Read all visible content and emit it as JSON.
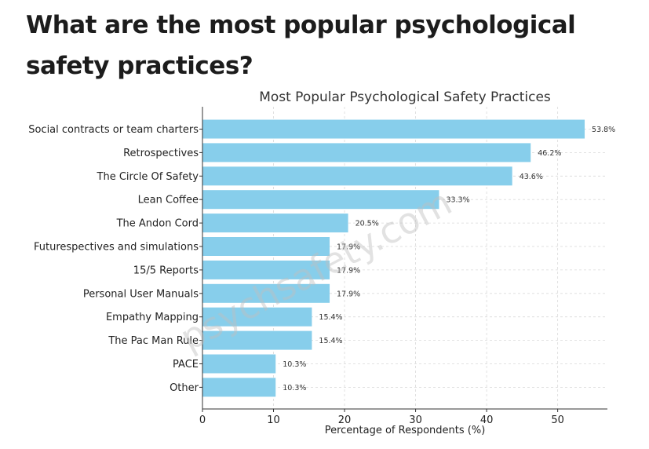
{
  "page": {
    "headline": "What are the most popular psychological safety practices?",
    "watermark": "psychsafety.com"
  },
  "colors": {
    "bar": "#87ceeb",
    "grid": "#d9d9d9",
    "axis": "#333333"
  },
  "chart_data": {
    "type": "bar",
    "orientation": "horizontal",
    "title": "Most Popular Psychological Safety Practices",
    "xlabel": "Percentage of Respondents (%)",
    "ylabel": "",
    "xlim": [
      0,
      57
    ],
    "xticks": [
      0,
      10,
      20,
      30,
      40,
      50
    ],
    "grid": true,
    "categories": [
      "Social contracts or team charters",
      "Retrospectives",
      "The Circle Of Safety",
      "Lean Coffee",
      "The Andon Cord",
      "Futurespectives and simulations",
      "15/5 Reports",
      "Personal User Manuals",
      "Empathy Mapping",
      "The Pac Man Rule",
      "PACE",
      "Other"
    ],
    "values": [
      53.8,
      46.2,
      43.6,
      33.3,
      20.5,
      17.9,
      17.9,
      17.9,
      15.4,
      15.4,
      10.3,
      10.3
    ],
    "value_labels": [
      "53.8%",
      "46.2%",
      "43.6%",
      "33.3%",
      "20.5%",
      "17.9%",
      "17.9%",
      "17.9%",
      "15.4%",
      "15.4%",
      "10.3%",
      "10.3%"
    ]
  }
}
